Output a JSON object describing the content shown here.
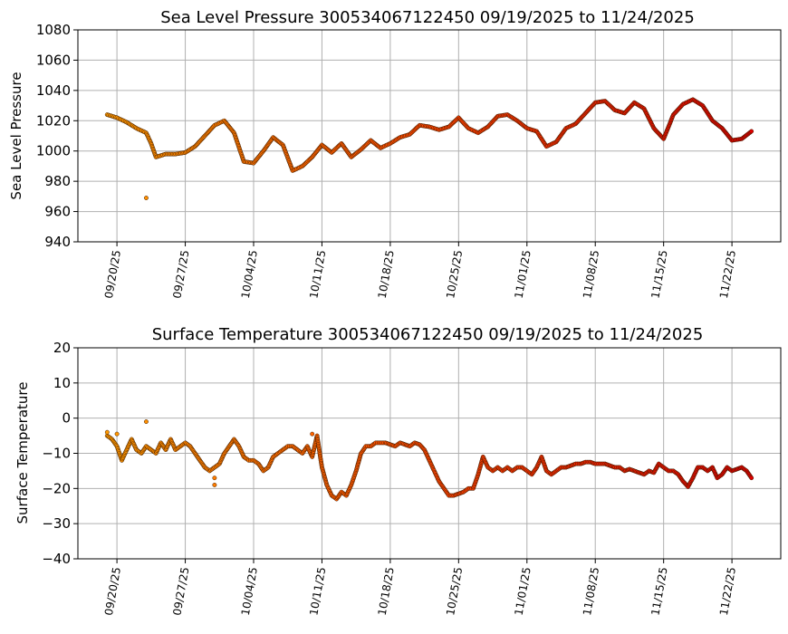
{
  "chart_data": [
    {
      "type": "scatter",
      "title": "Sea Level Pressure 300534067122450  09/19/2025 to 11/24/2025",
      "xlabel": "",
      "ylabel": "Sea Level Pressure",
      "xlim": [
        "2025-09-16",
        "2025-11-27"
      ],
      "ylim": [
        940,
        1080
      ],
      "yticks": [
        940,
        960,
        980,
        1000,
        1020,
        1040,
        1060,
        1080
      ],
      "xticks": [
        "2025-09-20",
        "2025-09-27",
        "2025-10-04",
        "2025-10-11",
        "2025-10-18",
        "2025-10-25",
        "2025-11-01",
        "2025-11-08",
        "2025-11-15",
        "2025-11-22"
      ],
      "xtick_labels": [
        "09/20/25",
        "09/27/25",
        "10/04/25",
        "10/11/25",
        "10/18/25",
        "10/25/25",
        "11/01/25",
        "11/08/25",
        "11/15/25",
        "11/22/25"
      ],
      "grid": true,
      "color_gradient": [
        "#ff9900",
        "#ff4500",
        "#e00000"
      ],
      "series": [
        {
          "points": [
            [
              "2025-09-19",
              1024
            ],
            [
              "2025-09-20",
              1022
            ],
            [
              "2025-09-21",
              1019
            ],
            [
              "2025-09-22",
              1015
            ],
            [
              "2025-09-23",
              1012
            ],
            [
              "2025-09-23T12",
              1005
            ],
            [
              "2025-09-24",
              996
            ],
            [
              "2025-09-25",
              998
            ],
            [
              "2025-09-26",
              998
            ],
            [
              "2025-09-27",
              999
            ],
            [
              "2025-09-28",
              1003
            ],
            [
              "2025-09-29",
              1010
            ],
            [
              "2025-09-30",
              1017
            ],
            [
              "2025-10-01",
              1020
            ],
            [
              "2025-10-02",
              1012
            ],
            [
              "2025-10-03",
              993
            ],
            [
              "2025-10-04",
              992
            ],
            [
              "2025-10-05",
              1000
            ],
            [
              "2025-10-06",
              1009
            ],
            [
              "2025-10-07",
              1004
            ],
            [
              "2025-10-08",
              987
            ],
            [
              "2025-10-09",
              990
            ],
            [
              "2025-10-10",
              996
            ],
            [
              "2025-10-11",
              1004
            ],
            [
              "2025-10-12",
              999
            ],
            [
              "2025-10-13",
              1005
            ],
            [
              "2025-10-14",
              996
            ],
            [
              "2025-10-15",
              1001
            ],
            [
              "2025-10-16",
              1007
            ],
            [
              "2025-10-17",
              1002
            ],
            [
              "2025-10-18",
              1005
            ],
            [
              "2025-10-19",
              1009
            ],
            [
              "2025-10-20",
              1011
            ],
            [
              "2025-10-21",
              1017
            ],
            [
              "2025-10-22",
              1016
            ],
            [
              "2025-10-23",
              1014
            ],
            [
              "2025-10-24",
              1016
            ],
            [
              "2025-10-25",
              1022
            ],
            [
              "2025-10-26",
              1015
            ],
            [
              "2025-10-27",
              1012
            ],
            [
              "2025-10-28",
              1016
            ],
            [
              "2025-10-29",
              1023
            ],
            [
              "2025-10-30",
              1024
            ],
            [
              "2025-10-31",
              1020
            ],
            [
              "2025-11-01",
              1015
            ],
            [
              "2025-11-02",
              1013
            ],
            [
              "2025-11-03",
              1003
            ],
            [
              "2025-11-04",
              1006
            ],
            [
              "2025-11-05",
              1015
            ],
            [
              "2025-11-06",
              1018
            ],
            [
              "2025-11-07",
              1025
            ],
            [
              "2025-11-08",
              1032
            ],
            [
              "2025-11-09",
              1033
            ],
            [
              "2025-11-10",
              1027
            ],
            [
              "2025-11-11",
              1025
            ],
            [
              "2025-11-12",
              1032
            ],
            [
              "2025-11-13",
              1028
            ],
            [
              "2025-11-14",
              1015
            ],
            [
              "2025-11-15",
              1008
            ],
            [
              "2025-11-16",
              1024
            ],
            [
              "2025-11-17",
              1031
            ],
            [
              "2025-11-18",
              1034
            ],
            [
              "2025-11-19",
              1030
            ],
            [
              "2025-11-20",
              1020
            ],
            [
              "2025-11-21",
              1015
            ],
            [
              "2025-11-22",
              1007
            ],
            [
              "2025-11-23",
              1008
            ],
            [
              "2025-11-24",
              1013
            ]
          ],
          "outliers": [
            [
              "2025-09-23",
              969
            ]
          ]
        }
      ]
    },
    {
      "type": "scatter",
      "title": "Surface Temperature 300534067122450  09/19/2025 to 11/24/2025",
      "xlabel": "",
      "ylabel": "Surface Temperature",
      "xlim": [
        "2025-09-16",
        "2025-11-27"
      ],
      "ylim": [
        -40,
        20
      ],
      "yticks": [
        -40,
        -30,
        -20,
        -10,
        0,
        10,
        20
      ],
      "xticks": [
        "2025-09-20",
        "2025-09-27",
        "2025-10-04",
        "2025-10-11",
        "2025-10-18",
        "2025-10-25",
        "2025-11-01",
        "2025-11-08",
        "2025-11-15",
        "2025-11-22"
      ],
      "xtick_labels": [
        "09/20/25",
        "09/27/25",
        "10/04/25",
        "10/11/25",
        "10/18/25",
        "10/25/25",
        "11/01/25",
        "11/08/25",
        "11/15/25",
        "11/22/25"
      ],
      "grid": true,
      "color_gradient": [
        "#ff9900",
        "#ff4500",
        "#e00000"
      ],
      "series": [
        {
          "points": [
            [
              "2025-09-19",
              -5
            ],
            [
              "2025-09-19T12",
              -6
            ],
            [
              "2025-09-20",
              -8
            ],
            [
              "2025-09-20T12",
              -12
            ],
            [
              "2025-09-21",
              -9
            ],
            [
              "2025-09-21T12",
              -6
            ],
            [
              "2025-09-22",
              -9
            ],
            [
              "2025-09-22T12",
              -10
            ],
            [
              "2025-09-23",
              -8
            ],
            [
              "2025-09-23T12",
              -9
            ],
            [
              "2025-09-24",
              -10
            ],
            [
              "2025-09-24T12",
              -7
            ],
            [
              "2025-09-25",
              -9
            ],
            [
              "2025-09-25T12",
              -6
            ],
            [
              "2025-09-26",
              -9
            ],
            [
              "2025-09-26T12",
              -8
            ],
            [
              "2025-09-27",
              -7
            ],
            [
              "2025-09-27T12",
              -8
            ],
            [
              "2025-09-28",
              -10
            ],
            [
              "2025-09-28T12",
              -12
            ],
            [
              "2025-09-29",
              -14
            ],
            [
              "2025-09-29T12",
              -15
            ],
            [
              "2025-09-30",
              -14
            ],
            [
              "2025-09-30T12",
              -13
            ],
            [
              "2025-10-01",
              -10
            ],
            [
              "2025-10-01T12",
              -8
            ],
            [
              "2025-10-02",
              -6
            ],
            [
              "2025-10-02T12",
              -8
            ],
            [
              "2025-10-03",
              -11
            ],
            [
              "2025-10-03T12",
              -12
            ],
            [
              "2025-10-04",
              -12
            ],
            [
              "2025-10-04T12",
              -13
            ],
            [
              "2025-10-05",
              -15
            ],
            [
              "2025-10-05T12",
              -14
            ],
            [
              "2025-10-06",
              -11
            ],
            [
              "2025-10-06T12",
              -10
            ],
            [
              "2025-10-07",
              -9
            ],
            [
              "2025-10-07T12",
              -8
            ],
            [
              "2025-10-08",
              -8
            ],
            [
              "2025-10-08T12",
              -9
            ],
            [
              "2025-10-09",
              -10
            ],
            [
              "2025-10-09T12",
              -8
            ],
            [
              "2025-10-10",
              -11
            ],
            [
              "2025-10-10T12",
              -5
            ],
            [
              "2025-10-11",
              -14
            ],
            [
              "2025-10-11T12",
              -19
            ],
            [
              "2025-10-12",
              -22
            ],
            [
              "2025-10-12T12",
              -23
            ],
            [
              "2025-10-13",
              -21
            ],
            [
              "2025-10-13T12",
              -22
            ],
            [
              "2025-10-14",
              -19
            ],
            [
              "2025-10-14T12",
              -15
            ],
            [
              "2025-10-15",
              -10
            ],
            [
              "2025-10-15T12",
              -8
            ],
            [
              "2025-10-16",
              -8
            ],
            [
              "2025-10-16T12",
              -7
            ],
            [
              "2025-10-17",
              -7
            ],
            [
              "2025-10-17T12",
              -7
            ],
            [
              "2025-10-18",
              -7.5
            ],
            [
              "2025-10-18T12",
              -8
            ],
            [
              "2025-10-19",
              -7
            ],
            [
              "2025-10-19T12",
              -7.5
            ],
            [
              "2025-10-20",
              -8
            ],
            [
              "2025-10-20T12",
              -7
            ],
            [
              "2025-10-21",
              -7.5
            ],
            [
              "2025-10-21T12",
              -9
            ],
            [
              "2025-10-22",
              -12
            ],
            [
              "2025-10-22T12",
              -15
            ],
            [
              "2025-10-23",
              -18
            ],
            [
              "2025-10-23T12",
              -20
            ],
            [
              "2025-10-24",
              -22
            ],
            [
              "2025-10-24T12",
              -22
            ],
            [
              "2025-10-25",
              -21.5
            ],
            [
              "2025-10-25T12",
              -21
            ],
            [
              "2025-10-26",
              -20
            ],
            [
              "2025-10-26T12",
              -20
            ],
            [
              "2025-10-27",
              -16
            ],
            [
              "2025-10-27T12",
              -11
            ],
            [
              "2025-10-28",
              -14
            ],
            [
              "2025-10-28T12",
              -15
            ],
            [
              "2025-10-29",
              -14
            ],
            [
              "2025-10-29T12",
              -15
            ],
            [
              "2025-10-30",
              -14
            ],
            [
              "2025-10-30T12",
              -15
            ],
            [
              "2025-10-31",
              -14
            ],
            [
              "2025-10-31T12",
              -14
            ],
            [
              "2025-11-01",
              -15
            ],
            [
              "2025-11-01T12",
              -16
            ],
            [
              "2025-11-02",
              -14
            ],
            [
              "2025-11-02T12",
              -11
            ],
            [
              "2025-11-03",
              -15
            ],
            [
              "2025-11-03T12",
              -16
            ],
            [
              "2025-11-04",
              -15
            ],
            [
              "2025-11-04T12",
              -14
            ],
            [
              "2025-11-05",
              -14
            ],
            [
              "2025-11-05T12",
              -13.5
            ],
            [
              "2025-11-06",
              -13
            ],
            [
              "2025-11-06T12",
              -13
            ],
            [
              "2025-11-07",
              -12.5
            ],
            [
              "2025-11-07T12",
              -12.5
            ],
            [
              "2025-11-08",
              -13
            ],
            [
              "2025-11-08T12",
              -13
            ],
            [
              "2025-11-09",
              -13
            ],
            [
              "2025-11-09T12",
              -13.5
            ],
            [
              "2025-11-10",
              -14
            ],
            [
              "2025-11-10T12",
              -14
            ],
            [
              "2025-11-11",
              -15
            ],
            [
              "2025-11-11T12",
              -14.5
            ],
            [
              "2025-11-12",
              -15
            ],
            [
              "2025-11-12T12",
              -15.5
            ],
            [
              "2025-11-13",
              -16
            ],
            [
              "2025-11-13T12",
              -15
            ],
            [
              "2025-11-14",
              -15.5
            ],
            [
              "2025-11-14T12",
              -13
            ],
            [
              "2025-11-15",
              -14
            ],
            [
              "2025-11-15T12",
              -15
            ],
            [
              "2025-11-16",
              -15
            ],
            [
              "2025-11-16T12",
              -16
            ],
            [
              "2025-11-17",
              -18
            ],
            [
              "2025-11-17T12",
              -19.5
            ],
            [
              "2025-11-18",
              -17
            ],
            [
              "2025-11-18T12",
              -14
            ],
            [
              "2025-11-19",
              -14
            ],
            [
              "2025-11-19T12",
              -15
            ],
            [
              "2025-11-20",
              -14
            ],
            [
              "2025-11-20T12",
              -17
            ],
            [
              "2025-11-21",
              -16
            ],
            [
              "2025-11-21T12",
              -14
            ],
            [
              "2025-11-22",
              -15
            ],
            [
              "2025-11-22T12",
              -14.5
            ],
            [
              "2025-11-23",
              -14
            ],
            [
              "2025-11-23T12",
              -15
            ],
            [
              "2025-11-24",
              -17
            ]
          ],
          "outliers": [
            [
              "2025-09-19",
              -4
            ],
            [
              "2025-09-20",
              -4.5
            ],
            [
              "2025-09-23",
              -1
            ],
            [
              "2025-09-30",
              -19
            ],
            [
              "2025-09-30",
              -17
            ],
            [
              "2025-10-10",
              -4.5
            ]
          ]
        }
      ]
    }
  ]
}
